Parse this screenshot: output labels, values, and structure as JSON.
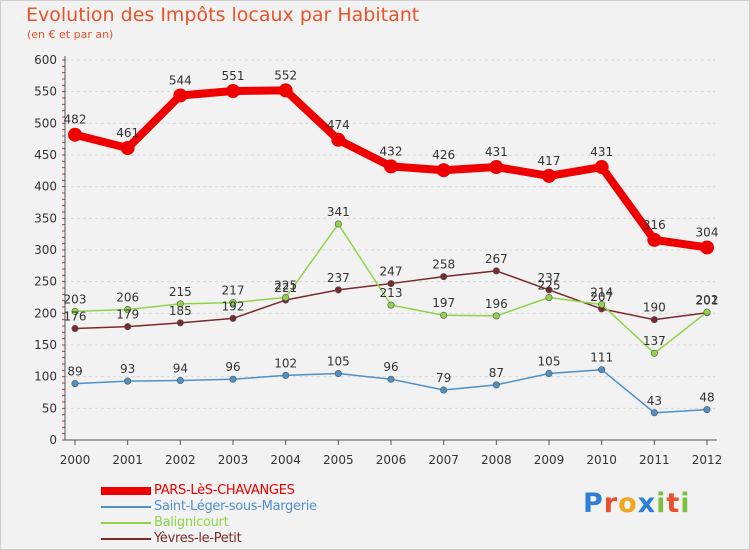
{
  "header": {
    "title": "Evolution des Impôts locaux par Habitant",
    "subtitle": "(en € et par an)"
  },
  "logo": {
    "letters": [
      "P",
      "r",
      "o",
      "x",
      "i",
      "t",
      "i"
    ],
    "colors": [
      "#2e7fd6",
      "#e84f2a",
      "#f2a51f",
      "#2e7fd6",
      "#7ac142",
      "#e84f2a",
      "#7ac142"
    ]
  },
  "chart_data": {
    "type": "line",
    "x": [
      "2000",
      "2001",
      "2002",
      "2003",
      "2004",
      "2005",
      "2006",
      "2007",
      "2008",
      "2009",
      "2010",
      "2011",
      "2012"
    ],
    "ylim": [
      0,
      600
    ],
    "yticks": [
      "0",
      "50",
      "100",
      "150",
      "200",
      "250",
      "300",
      "350",
      "400",
      "450",
      "500",
      "550",
      "600"
    ],
    "grid": "horizontal",
    "legend_position": "bottom-left",
    "series": [
      {
        "name": "PARS-LèS-CHAVANGES",
        "color": "#ee0000",
        "values": [
          482,
          461,
          544,
          551,
          552,
          474,
          432,
          426,
          431,
          417,
          431,
          316,
          304
        ],
        "labels": [
          "482",
          "461",
          "544",
          "551",
          "552",
          "474",
          "432",
          "426",
          "431",
          "417",
          "431",
          "316",
          "304"
        ]
      },
      {
        "name": "Saint-Léger-sous-Margerie",
        "color": "#4f90c8",
        "values": [
          89,
          93,
          94,
          96,
          102,
          105,
          96,
          79,
          87,
          105,
          111,
          43,
          48
        ],
        "labels": [
          "89",
          "93",
          "94",
          "96",
          "102",
          "105",
          "96",
          "79",
          "87",
          "105",
          "111",
          "43",
          "48"
        ]
      },
      {
        "name": "Balignicourt",
        "color": "#8fd44a",
        "values": [
          203,
          206,
          215,
          217,
          225,
          341,
          213,
          197,
          196,
          225,
          214,
          137,
          202
        ],
        "labels": [
          "203",
          "206",
          "215",
          "217",
          "225",
          "341",
          "213",
          "197",
          "196",
          "225",
          "214",
          "137",
          "202"
        ]
      },
      {
        "name": "Yèvres-le-Petit",
        "color": "#7a2a2a",
        "values": [
          176,
          179,
          185,
          192,
          221,
          237,
          247,
          258,
          267,
          237,
          207,
          190,
          201
        ],
        "labels": [
          "176",
          "179",
          "185",
          "192",
          "221",
          "237",
          "247",
          "258",
          "267",
          "237",
          "207",
          "190",
          "201"
        ]
      }
    ]
  }
}
